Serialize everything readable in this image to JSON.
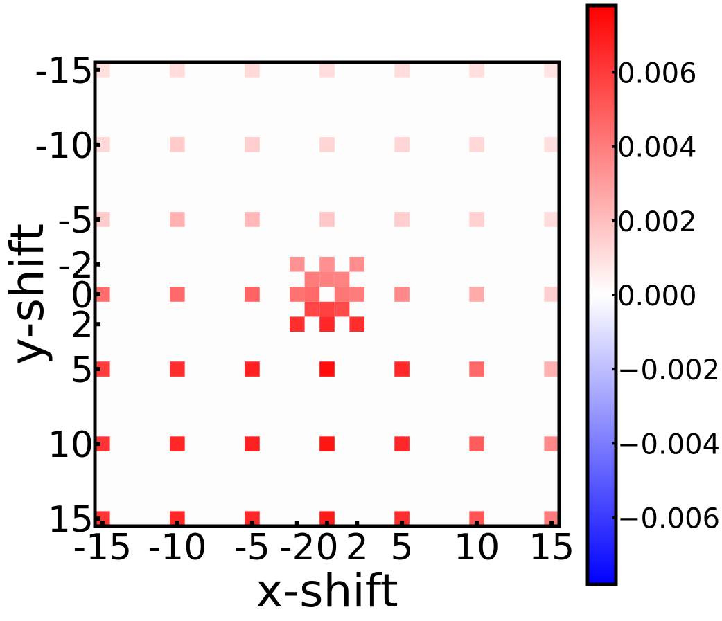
{
  "chart_data": {
    "type": "heatmap",
    "title": "",
    "xlabel": "x-shift",
    "ylabel": "y-shift",
    "xlim": [
      -15.5,
      15.5
    ],
    "ylim": [
      15.5,
      -15.5
    ],
    "x_ticks": [
      -15,
      -10,
      -5,
      -2,
      0,
      2,
      5,
      10,
      15
    ],
    "y_ticks": [
      -15,
      -10,
      -5,
      -2,
      0,
      2,
      5,
      10,
      15
    ],
    "x_tick_labels": [
      "-15",
      "-10",
      "-5",
      "-2",
      "0",
      "2",
      "5",
      "10",
      "15"
    ],
    "y_tick_labels": [
      "-15",
      "-10",
      "-5",
      "-2",
      "0",
      "2",
      "5",
      "10",
      "15"
    ],
    "colormap": "bwr",
    "colors": {
      "low": "#0000ff",
      "mid": "#ffffff",
      "high": "#ff0000",
      "background": "#fdfdfd"
    },
    "colorbar": {
      "vmin": -0.0078,
      "vmax": 0.0078,
      "ticks": [
        0.006,
        0.004,
        0.002,
        0.0,
        -0.002,
        -0.004,
        -0.006
      ],
      "tick_labels": [
        "0.006",
        "0.004",
        "0.002",
        "0.000",
        "−0.002",
        "−0.004",
        "−0.006"
      ]
    },
    "cells": [
      {
        "x": -15,
        "y": -15,
        "v": 0.001
      },
      {
        "x": -10,
        "y": -15,
        "v": 0.0011
      },
      {
        "x": -5,
        "y": -15,
        "v": 0.0012
      },
      {
        "x": 0,
        "y": -15,
        "v": 0.0011
      },
      {
        "x": 5,
        "y": -15,
        "v": 0.0011
      },
      {
        "x": 10,
        "y": -15,
        "v": 0.001
      },
      {
        "x": 15,
        "y": -15,
        "v": 0.0009
      },
      {
        "x": -15,
        "y": -10,
        "v": 0.0012
      },
      {
        "x": -10,
        "y": -10,
        "v": 0.0016
      },
      {
        "x": -5,
        "y": -10,
        "v": 0.0015
      },
      {
        "x": 0,
        "y": -10,
        "v": 0.0013
      },
      {
        "x": 5,
        "y": -10,
        "v": 0.0013
      },
      {
        "x": 10,
        "y": -10,
        "v": 0.0012
      },
      {
        "x": 15,
        "y": -10,
        "v": 0.001
      },
      {
        "x": -15,
        "y": -5,
        "v": 0.0016
      },
      {
        "x": -10,
        "y": -5,
        "v": 0.0024
      },
      {
        "x": -5,
        "y": -5,
        "v": 0.0022
      },
      {
        "x": 0,
        "y": -5,
        "v": 0.0017
      },
      {
        "x": 5,
        "y": -5,
        "v": 0.0015
      },
      {
        "x": 10,
        "y": -5,
        "v": 0.0014
      },
      {
        "x": 15,
        "y": -5,
        "v": 0.0011
      },
      {
        "x": -2,
        "y": -2,
        "v": 0.0033
      },
      {
        "x": 0,
        "y": -2,
        "v": 0.0034
      },
      {
        "x": 2,
        "y": -2,
        "v": 0.0035
      },
      {
        "x": -1,
        "y": -1,
        "v": 0.004
      },
      {
        "x": 0,
        "y": -1,
        "v": 0.0039
      },
      {
        "x": 1,
        "y": -1,
        "v": 0.0038
      },
      {
        "x": -15,
        "y": 0,
        "v": 0.0045
      },
      {
        "x": -10,
        "y": 0,
        "v": 0.0046
      },
      {
        "x": -5,
        "y": 0,
        "v": 0.0048
      },
      {
        "x": -2,
        "y": 0,
        "v": 0.0043
      },
      {
        "x": -1,
        "y": 0,
        "v": 0.0046
      },
      {
        "x": 1,
        "y": 0,
        "v": 0.0042
      },
      {
        "x": 2,
        "y": 0,
        "v": 0.004
      },
      {
        "x": 5,
        "y": 0,
        "v": 0.0036
      },
      {
        "x": 10,
        "y": 0,
        "v": 0.0026
      },
      {
        "x": 15,
        "y": 0,
        "v": 0.0015
      },
      {
        "x": -1,
        "y": 1,
        "v": 0.0057
      },
      {
        "x": 0,
        "y": 1,
        "v": 0.0058
      },
      {
        "x": 1,
        "y": 1,
        "v": 0.0055
      },
      {
        "x": -2,
        "y": 2,
        "v": 0.0064
      },
      {
        "x": 0,
        "y": 2,
        "v": 0.0066
      },
      {
        "x": 2,
        "y": 2,
        "v": 0.0064
      },
      {
        "x": -15,
        "y": 5,
        "v": 0.006
      },
      {
        "x": -10,
        "y": 5,
        "v": 0.0064
      },
      {
        "x": -5,
        "y": 5,
        "v": 0.0068
      },
      {
        "x": 0,
        "y": 5,
        "v": 0.0074
      },
      {
        "x": 5,
        "y": 5,
        "v": 0.0066
      },
      {
        "x": 10,
        "y": 5,
        "v": 0.0046
      },
      {
        "x": 15,
        "y": 5,
        "v": 0.0024
      },
      {
        "x": -15,
        "y": 10,
        "v": 0.0062
      },
      {
        "x": -10,
        "y": 10,
        "v": 0.0066
      },
      {
        "x": -5,
        "y": 10,
        "v": 0.0068
      },
      {
        "x": 0,
        "y": 10,
        "v": 0.0072
      },
      {
        "x": 5,
        "y": 10,
        "v": 0.0066
      },
      {
        "x": 10,
        "y": 10,
        "v": 0.005
      },
      {
        "x": 15,
        "y": 10,
        "v": 0.0036
      },
      {
        "x": -15,
        "y": 15,
        "v": 0.0062
      },
      {
        "x": -10,
        "y": 15,
        "v": 0.0066
      },
      {
        "x": -5,
        "y": 15,
        "v": 0.0066
      },
      {
        "x": 0,
        "y": 15,
        "v": 0.007
      },
      {
        "x": 5,
        "y": 15,
        "v": 0.0064
      },
      {
        "x": 10,
        "y": 15,
        "v": 0.0052
      },
      {
        "x": 15,
        "y": 15,
        "v": 0.004
      }
    ]
  }
}
